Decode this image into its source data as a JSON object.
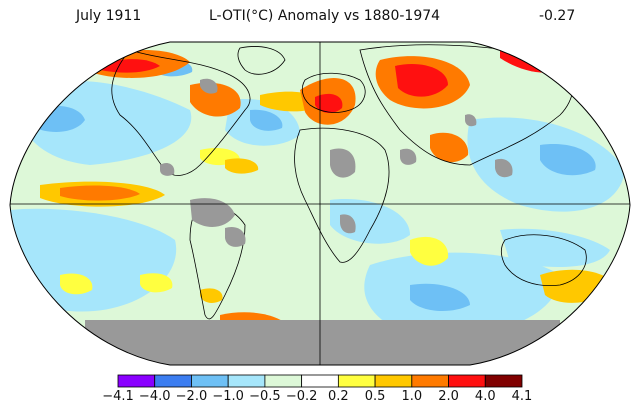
{
  "header": {
    "date": "July 1911",
    "title": "L-OTI(°C) Anomaly vs 1880-1974",
    "global_mean": "-0.27"
  },
  "colors": {
    "scale": [
      "#8a00ff",
      "#3c7df0",
      "#6ec0f5",
      "#a6e6fb",
      "#ddf8d8",
      "#ffffff",
      "#ffff40",
      "#ffc800",
      "#ff7a00",
      "#ff1010",
      "#800000"
    ],
    "land_no_data": "#999999",
    "ocean_neutral": "#ffffff"
  },
  "legend": {
    "ticks": [
      "−4.1",
      "−4.0",
      "−2.0",
      "−1.0",
      "−0.5",
      "−0.2",
      "0.2",
      "0.5",
      "1.0",
      "2.0",
      "4.0",
      "4.1"
    ]
  }
}
